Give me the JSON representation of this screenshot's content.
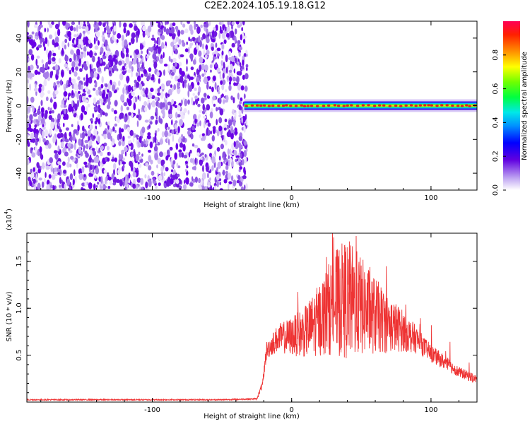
{
  "title": "C2E2.2024.105.19.18.G12",
  "colors": {
    "signal": "#e02020",
    "snr_line": "#ee3333"
  },
  "chart_data": [
    {
      "type": "heatmap",
      "xlabel": "Height of straight line (km)",
      "ylabel": "Frequency (Hz)",
      "xlim": [
        -190,
        133
      ],
      "ylim": [
        -50,
        50
      ],
      "xticks": [
        -100,
        0,
        100
      ],
      "xtick_labels": [
        "-100",
        "0",
        "100"
      ],
      "yticks": [
        -40,
        -20,
        0,
        20,
        40
      ],
      "ytick_labels": [
        "-40",
        "-20",
        "0",
        "20",
        "40"
      ],
      "noise_region_x": [
        -190,
        -34
      ],
      "signal_line": {
        "x_start": -34,
        "x_end": 133,
        "frequency": 0
      },
      "colorbar": {
        "label": "Normalized spectral amplitude",
        "range": [
          0,
          1
        ],
        "ticks": [
          0.0,
          0.2,
          0.4,
          0.6,
          0.8
        ],
        "tick_labels": [
          "0.0",
          "0.2",
          "0.4",
          "0.6",
          "0.8"
        ]
      },
      "grid": false
    },
    {
      "type": "line",
      "xlabel": "Height of straight line (km)",
      "ylabel": "SNR (10 * v/v)",
      "y_multiplier": "(x10",
      "y_multiplier_exp": "4",
      "xlim": [
        -190,
        133
      ],
      "ylim": [
        0,
        18000
      ],
      "xticks": [
        -100,
        0,
        100
      ],
      "xtick_labels": [
        "-100",
        "0",
        "100"
      ],
      "yticks": [
        5000,
        10000,
        15000
      ],
      "ytick_labels": [
        "0.5",
        "1.0",
        "1.5"
      ],
      "series": [
        {
          "x": [
            -190,
            -100,
            -50,
            -25,
            -21,
            -18,
            -10,
            0,
            10,
            20,
            30,
            40,
            50,
            60,
            70,
            80,
            90,
            100,
            110,
            120,
            133
          ],
          "y": [
            250,
            250,
            250,
            350,
            1800,
            5500,
            6800,
            7000,
            7500,
            8800,
            10500,
            11000,
            10200,
            9200,
            8300,
            7600,
            6600,
            5200,
            4200,
            3200,
            2400
          ]
        }
      ],
      "grid": false
    }
  ]
}
